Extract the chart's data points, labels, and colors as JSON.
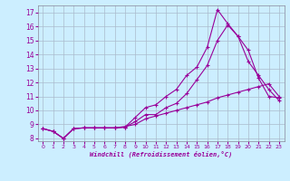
{
  "xlabel": "Windchill (Refroidissement éolien,°C)",
  "bg_color": "#cceeff",
  "line_color": "#990099",
  "grid_color": "#aabbcc",
  "xlim": [
    -0.5,
    23.5
  ],
  "ylim": [
    7.8,
    17.5
  ],
  "xticks": [
    0,
    1,
    2,
    3,
    4,
    5,
    6,
    7,
    8,
    9,
    10,
    11,
    12,
    13,
    14,
    15,
    16,
    17,
    18,
    19,
    20,
    21,
    22,
    23
  ],
  "yticks": [
    8,
    9,
    10,
    11,
    12,
    13,
    14,
    15,
    16,
    17
  ],
  "s1_x": [
    0,
    1,
    2,
    3,
    4,
    5,
    6,
    7,
    8,
    9,
    10,
    11,
    12,
    13,
    14,
    15,
    16,
    17,
    18,
    19,
    20,
    21,
    22,
    23
  ],
  "s1_y": [
    8.7,
    8.5,
    8.0,
    8.7,
    8.75,
    8.75,
    8.75,
    8.75,
    8.8,
    9.5,
    10.2,
    10.4,
    11.0,
    11.5,
    12.5,
    13.1,
    14.5,
    17.2,
    16.2,
    15.3,
    14.3,
    12.3,
    11.0,
    10.9
  ],
  "s2_x": [
    0,
    1,
    2,
    3,
    4,
    5,
    6,
    7,
    8,
    9,
    10,
    11,
    12,
    13,
    14,
    15,
    16,
    17,
    18,
    19,
    20,
    21,
    22,
    23
  ],
  "s2_y": [
    8.7,
    8.5,
    8.0,
    8.7,
    8.75,
    8.75,
    8.75,
    8.75,
    8.8,
    9.2,
    9.7,
    9.7,
    10.2,
    10.5,
    11.2,
    12.2,
    13.2,
    15.0,
    16.1,
    15.3,
    13.5,
    12.5,
    11.5,
    10.7
  ],
  "s3_x": [
    0,
    1,
    2,
    3,
    4,
    5,
    6,
    7,
    8,
    9,
    10,
    11,
    12,
    13,
    14,
    15,
    16,
    17,
    18,
    19,
    20,
    21,
    22,
    23
  ],
  "s3_y": [
    8.7,
    8.5,
    8.0,
    8.7,
    8.75,
    8.75,
    8.75,
    8.75,
    8.85,
    9.0,
    9.4,
    9.6,
    9.8,
    10.0,
    10.2,
    10.4,
    10.6,
    10.9,
    11.1,
    11.3,
    11.5,
    11.7,
    11.9,
    11.0
  ]
}
